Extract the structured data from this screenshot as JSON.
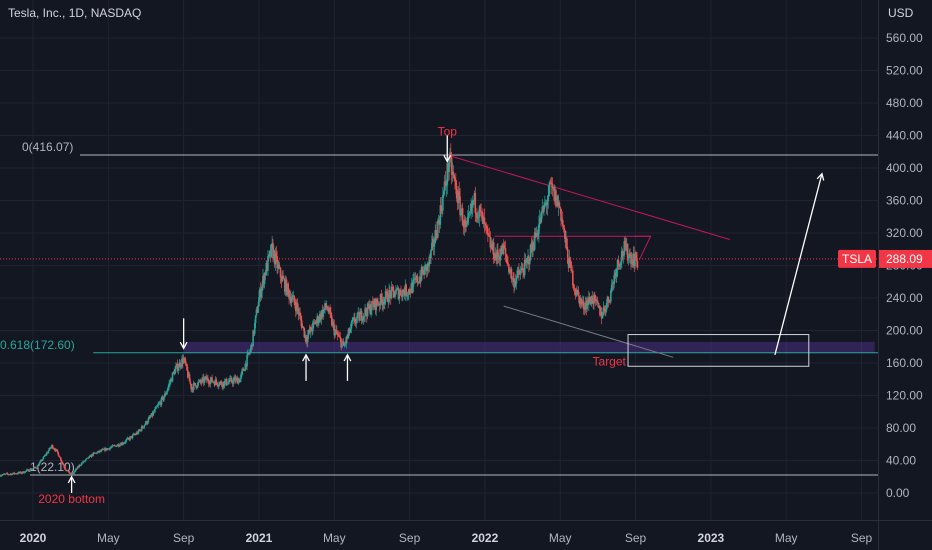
{
  "header": {
    "title": "Tesla, Inc., 1D, NASDAQ",
    "currency": "USD"
  },
  "chart_data": {
    "type": "candlestick",
    "symbol": "TSLA",
    "last_price": "288.09",
    "ylim": [
      -20,
      590
    ],
    "y_ticks": [
      "0.00",
      "40.00",
      "80.00",
      "120.00",
      "160.00",
      "200.00",
      "240.00",
      "280.00",
      "320.00",
      "360.00",
      "400.00",
      "440.00",
      "480.00",
      "520.00",
      "560.00"
    ],
    "x_ticks": [
      {
        "label": "2020",
        "x": 0
      },
      {
        "label": "May",
        "x": 4
      },
      {
        "label": "Sep",
        "x": 8
      },
      {
        "label": "2021",
        "x": 12
      },
      {
        "label": "May",
        "x": 16
      },
      {
        "label": "Sep",
        "x": 20
      },
      {
        "label": "2022",
        "x": 24
      },
      {
        "label": "May",
        "x": 28
      },
      {
        "label": "Sep",
        "x": 32
      },
      {
        "label": "2023",
        "x": 36
      },
      {
        "label": "May",
        "x": 40
      },
      {
        "label": "Sep",
        "x": 44
      }
    ],
    "price_path": [
      [
        -1.8,
        22
      ],
      [
        -0.6,
        25
      ],
      [
        0.2,
        32
      ],
      [
        0.6,
        45
      ],
      [
        1.0,
        58
      ],
      [
        1.3,
        50
      ],
      [
        1.7,
        30
      ],
      [
        2.05,
        22
      ],
      [
        2.5,
        35
      ],
      [
        3.2,
        48
      ],
      [
        4.0,
        55
      ],
      [
        4.8,
        62
      ],
      [
        5.6,
        75
      ],
      [
        6.3,
        95
      ],
      [
        7.0,
        120
      ],
      [
        7.5,
        150
      ],
      [
        8.0,
        165
      ],
      [
        8.4,
        130
      ],
      [
        9.2,
        140
      ],
      [
        10.0,
        135
      ],
      [
        11.0,
        140
      ],
      [
        11.6,
        180
      ],
      [
        12.0,
        240
      ],
      [
        12.3,
        270
      ],
      [
        12.7,
        300
      ],
      [
        13.1,
        270
      ],
      [
        13.6,
        245
      ],
      [
        14.0,
        230
      ],
      [
        14.5,
        190
      ],
      [
        15.0,
        210
      ],
      [
        15.6,
        230
      ],
      [
        16.0,
        200
      ],
      [
        16.5,
        180
      ],
      [
        17.0,
        210
      ],
      [
        18.0,
        230
      ],
      [
        19.0,
        245
      ],
      [
        20.0,
        250
      ],
      [
        21.0,
        280
      ],
      [
        21.5,
        330
      ],
      [
        21.9,
        380
      ],
      [
        22.1,
        410
      ],
      [
        22.5,
        370
      ],
      [
        23.0,
        320
      ],
      [
        23.4,
        360
      ],
      [
        23.8,
        340
      ],
      [
        24.2,
        310
      ],
      [
        24.6,
        290
      ],
      [
        25.0,
        300
      ],
      [
        25.5,
        260
      ],
      [
        26.2,
        280
      ],
      [
        27.0,
        340
      ],
      [
        27.5,
        375
      ],
      [
        28.0,
        350
      ],
      [
        28.4,
        290
      ],
      [
        28.8,
        250
      ],
      [
        29.2,
        230
      ],
      [
        29.7,
        240
      ],
      [
        30.2,
        220
      ],
      [
        30.6,
        240
      ],
      [
        31.0,
        280
      ],
      [
        31.4,
        300
      ],
      [
        31.8,
        290
      ],
      [
        32.1,
        285
      ]
    ],
    "drawings": {
      "fib_levels": [
        {
          "label": "0(416.07)",
          "value": 416.07,
          "color": "#b2b5be"
        },
        {
          "label": "0.618(172.60)",
          "value": 172.6,
          "color": "#26a69a"
        },
        {
          "label": "1(22.10)",
          "value": 22.1,
          "color": "#b2b5be"
        }
      ],
      "annotations": [
        {
          "text": "Top",
          "x": 22.0,
          "y": 440,
          "color": "#f23645"
        },
        {
          "text": "2020 bottom",
          "x": 2.05,
          "y": -12,
          "color": "#f23645"
        },
        {
          "text": "Target",
          "x": 30.6,
          "y": 157,
          "color": "#f23645"
        }
      ],
      "support_zone": {
        "x1": 8.0,
        "x2": 44.7,
        "y1": 186,
        "y2": 172,
        "color": "#673ab7"
      },
      "target_box": {
        "x1": 31.6,
        "x2": 41.2,
        "y1": 195,
        "y2": 156
      },
      "trend_lines": [
        {
          "x1": 22.0,
          "y1": 416,
          "x2": 37.0,
          "y2": 312,
          "color": "#c2185b"
        },
        {
          "x1": 25.0,
          "y1": 230,
          "x2": 34.0,
          "y2": 167,
          "color": "#787b86"
        },
        {
          "x1": 24.5,
          "y1": 316,
          "x2": 32.8,
          "y2": 316,
          "color": "#c2185b"
        }
      ],
      "arrows": [
        {
          "x": 22.0,
          "y_from": 440,
          "y_to": 408,
          "color": "#ffffff"
        },
        {
          "x": 8.0,
          "y_from": 215,
          "y_to": 178,
          "color": "#ffffff"
        },
        {
          "x": 14.5,
          "y_from": 138,
          "y_to": 170,
          "color": "#ffffff"
        },
        {
          "x": 16.7,
          "y_from": 138,
          "y_to": 170,
          "color": "#ffffff"
        },
        {
          "x": 2.05,
          "y_from": 0,
          "y_to": 20,
          "color": "#ffffff"
        },
        {
          "x1": 39.4,
          "y1": 170,
          "x2": 41.9,
          "y2": 393,
          "color": "#ffffff"
        }
      ]
    }
  },
  "colors": {
    "background": "#131722",
    "up": "#26a69a",
    "down": "#ef5350",
    "price_line": "#f23645",
    "text": "#d1d4dc"
  }
}
